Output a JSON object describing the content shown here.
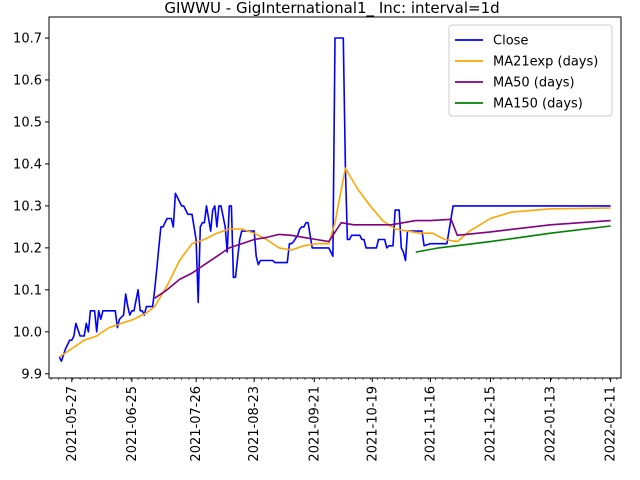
{
  "chart_data": {
    "type": "line",
    "title": "GIWWU - GigInternational1_ Inc: interval=1d",
    "xlabel": "",
    "ylabel": "",
    "xlim": [
      "2021-05-16",
      "2022-02-16"
    ],
    "ylim": [
      9.89,
      10.75
    ],
    "grid": false,
    "legend_position": "top-right",
    "x_ticks": [
      "2021-05-27",
      "2021-06-25",
      "2021-07-26",
      "2021-08-23",
      "2021-09-21",
      "2021-10-19",
      "2021-11-16",
      "2021-12-15",
      "2022-01-13",
      "2022-02-11"
    ],
    "y_ticks": [
      "9.9",
      "10.0",
      "10.1",
      "10.2",
      "10.3",
      "10.4",
      "10.5",
      "10.6",
      "10.7"
    ],
    "series": [
      {
        "name": "Close",
        "color": "#0000ff",
        "points": [
          [
            "2021-05-21",
            9.94
          ],
          [
            "2021-05-22",
            9.93
          ],
          [
            "2021-05-24",
            9.96
          ],
          [
            "2021-05-25",
            9.97
          ],
          [
            "2021-05-26",
            9.98
          ],
          [
            "2021-05-27",
            9.98
          ],
          [
            "2021-05-28",
            9.99
          ],
          [
            "2021-05-29",
            10.02
          ],
          [
            "2021-05-31",
            9.99
          ],
          [
            "2021-06-01",
            9.99
          ],
          [
            "2021-06-02",
            9.99
          ],
          [
            "2021-06-03",
            10.02
          ],
          [
            "2021-06-04",
            10.0
          ],
          [
            "2021-06-05",
            10.05
          ],
          [
            "2021-06-07",
            10.05
          ],
          [
            "2021-06-08",
            10.0
          ],
          [
            "2021-06-09",
            10.05
          ],
          [
            "2021-06-10",
            10.03
          ],
          [
            "2021-06-11",
            10.05
          ],
          [
            "2021-06-14",
            10.05
          ],
          [
            "2021-06-17",
            10.05
          ],
          [
            "2021-06-18",
            10.01
          ],
          [
            "2021-06-19",
            10.03
          ],
          [
            "2021-06-21",
            10.04
          ],
          [
            "2021-06-22",
            10.09
          ],
          [
            "2021-06-23",
            10.06
          ],
          [
            "2021-06-24",
            10.04
          ],
          [
            "2021-06-25",
            10.05
          ],
          [
            "2021-06-26",
            10.05
          ],
          [
            "2021-06-28",
            10.1
          ],
          [
            "2021-06-29",
            10.05
          ],
          [
            "2021-06-30",
            10.05
          ],
          [
            "2021-07-01",
            10.04
          ],
          [
            "2021-07-02",
            10.06
          ],
          [
            "2021-07-05",
            10.06
          ],
          [
            "2021-07-06",
            10.1
          ],
          [
            "2021-07-07",
            10.15
          ],
          [
            "2021-07-08",
            10.2
          ],
          [
            "2021-07-09",
            10.25
          ],
          [
            "2021-07-10",
            10.25
          ],
          [
            "2021-07-12",
            10.27
          ],
          [
            "2021-07-13",
            10.27
          ],
          [
            "2021-07-14",
            10.27
          ],
          [
            "2021-07-15",
            10.25
          ],
          [
            "2021-07-16",
            10.33
          ],
          [
            "2021-07-17",
            10.32
          ],
          [
            "2021-07-19",
            10.3
          ],
          [
            "2021-07-20",
            10.3
          ],
          [
            "2021-07-21",
            10.29
          ],
          [
            "2021-07-22",
            10.28
          ],
          [
            "2021-07-23",
            10.28
          ],
          [
            "2021-07-24",
            10.28
          ],
          [
            "2021-07-26",
            10.22
          ],
          [
            "2021-07-27",
            10.07
          ],
          [
            "2021-07-28",
            10.25
          ],
          [
            "2021-07-29",
            10.26
          ],
          [
            "2021-07-30",
            10.26
          ],
          [
            "2021-07-31",
            10.3
          ],
          [
            "2021-08-02",
            10.24
          ],
          [
            "2021-08-03",
            10.29
          ],
          [
            "2021-08-04",
            10.3
          ],
          [
            "2021-08-05",
            10.25
          ],
          [
            "2021-08-06",
            10.3
          ],
          [
            "2021-08-07",
            10.3
          ],
          [
            "2021-08-09",
            10.25
          ],
          [
            "2021-08-10",
            10.19
          ],
          [
            "2021-08-11",
            10.3
          ],
          [
            "2021-08-12",
            10.3
          ],
          [
            "2021-08-13",
            10.13
          ],
          [
            "2021-08-14",
            10.13
          ],
          [
            "2021-08-16",
            10.22
          ],
          [
            "2021-08-17",
            10.24
          ],
          [
            "2021-08-18",
            10.24
          ],
          [
            "2021-08-19",
            10.24
          ],
          [
            "2021-08-20",
            10.24
          ],
          [
            "2021-08-23",
            10.24
          ],
          [
            "2021-08-24",
            10.18
          ],
          [
            "2021-08-25",
            10.16
          ],
          [
            "2021-08-26",
            10.17
          ],
          [
            "2021-08-27",
            10.17
          ],
          [
            "2021-08-30",
            10.17
          ],
          [
            "2021-09-01",
            10.17
          ],
          [
            "2021-09-02",
            10.165
          ],
          [
            "2021-09-04",
            10.165
          ],
          [
            "2021-09-06",
            10.165
          ],
          [
            "2021-09-08",
            10.165
          ],
          [
            "2021-09-09",
            10.21
          ],
          [
            "2021-09-10",
            10.21
          ],
          [
            "2021-09-11",
            10.215
          ],
          [
            "2021-09-13",
            10.23
          ],
          [
            "2021-09-14",
            10.245
          ],
          [
            "2021-09-15",
            10.25
          ],
          [
            "2021-09-16",
            10.25
          ],
          [
            "2021-09-17",
            10.26
          ],
          [
            "2021-09-18",
            10.26
          ],
          [
            "2021-09-20",
            10.2
          ],
          [
            "2021-09-27",
            10.2
          ],
          [
            "2021-09-28",
            10.2
          ],
          [
            "2021-09-29",
            10.19
          ],
          [
            "2021-09-30",
            10.18
          ],
          [
            "2021-10-01",
            10.7
          ],
          [
            "2021-10-02",
            10.7
          ],
          [
            "2021-10-04",
            10.7
          ],
          [
            "2021-10-05",
            10.7
          ],
          [
            "2021-10-06",
            10.39
          ],
          [
            "2021-10-07",
            10.22
          ],
          [
            "2021-10-08",
            10.22
          ],
          [
            "2021-10-09",
            10.23
          ],
          [
            "2021-10-11",
            10.23
          ],
          [
            "2021-10-12",
            10.23
          ],
          [
            "2021-10-13",
            10.23
          ],
          [
            "2021-10-14",
            10.22
          ],
          [
            "2021-10-15",
            10.22
          ],
          [
            "2021-10-16",
            10.2
          ],
          [
            "2021-10-18",
            10.2
          ],
          [
            "2021-10-19",
            10.2
          ],
          [
            "2021-10-20",
            10.2
          ],
          [
            "2021-10-21",
            10.2
          ],
          [
            "2021-10-22",
            10.22
          ],
          [
            "2021-10-23",
            10.22
          ],
          [
            "2021-10-25",
            10.22
          ],
          [
            "2021-10-26",
            10.2
          ],
          [
            "2021-10-27",
            10.205
          ],
          [
            "2021-10-28",
            10.205
          ],
          [
            "2021-10-29",
            10.205
          ],
          [
            "2021-10-30",
            10.29
          ],
          [
            "2021-11-01",
            10.29
          ],
          [
            "2021-11-02",
            10.2
          ],
          [
            "2021-11-03",
            10.19
          ],
          [
            "2021-11-04",
            10.17
          ],
          [
            "2021-11-05",
            10.24
          ],
          [
            "2021-11-10",
            10.24
          ],
          [
            "2021-11-12",
            10.24
          ],
          [
            "2021-11-13",
            10.205
          ],
          [
            "2021-11-16",
            10.21
          ],
          [
            "2021-11-24",
            10.21
          ],
          [
            "2021-11-27",
            10.3
          ],
          [
            "2021-12-20",
            10.3
          ],
          [
            "2022-01-13",
            10.3
          ],
          [
            "2022-02-11",
            10.3
          ]
        ]
      },
      {
        "name": "MA21exp (days)",
        "color": "#ffa500",
        "points": [
          [
            "2021-05-21",
            9.94
          ],
          [
            "2021-05-27",
            9.96
          ],
          [
            "2021-06-02",
            9.98
          ],
          [
            "2021-06-08",
            9.99
          ],
          [
            "2021-06-14",
            10.01
          ],
          [
            "2021-06-20",
            10.02
          ],
          [
            "2021-06-26",
            10.03
          ],
          [
            "2021-07-02",
            10.045
          ],
          [
            "2021-07-06",
            10.06
          ],
          [
            "2021-07-12",
            10.11
          ],
          [
            "2021-07-18",
            10.17
          ],
          [
            "2021-07-24",
            10.21
          ],
          [
            "2021-07-30",
            10.22
          ],
          [
            "2021-08-05",
            10.235
          ],
          [
            "2021-08-11",
            10.245
          ],
          [
            "2021-08-17",
            10.245
          ],
          [
            "2021-08-23",
            10.235
          ],
          [
            "2021-08-29",
            10.22
          ],
          [
            "2021-09-04",
            10.2
          ],
          [
            "2021-09-10",
            10.195
          ],
          [
            "2021-09-16",
            10.205
          ],
          [
            "2021-09-22",
            10.21
          ],
          [
            "2021-09-28",
            10.21
          ],
          [
            "2021-10-01",
            10.26
          ],
          [
            "2021-10-06",
            10.39
          ],
          [
            "2021-10-12",
            10.34
          ],
          [
            "2021-10-18",
            10.3
          ],
          [
            "2021-10-24",
            10.265
          ],
          [
            "2021-10-30",
            10.245
          ],
          [
            "2021-11-05",
            10.24
          ],
          [
            "2021-11-11",
            10.235
          ],
          [
            "2021-11-17",
            10.235
          ],
          [
            "2021-11-23",
            10.22
          ],
          [
            "2021-11-29",
            10.215
          ],
          [
            "2021-12-05",
            10.24
          ],
          [
            "2021-12-15",
            10.27
          ],
          [
            "2021-12-25",
            10.285
          ],
          [
            "2022-01-13",
            10.293
          ],
          [
            "2022-02-11",
            10.295
          ]
        ]
      },
      {
        "name": "MA50 (days)",
        "color": "#800080",
        "points": [
          [
            "2021-07-06",
            10.08
          ],
          [
            "2021-07-12",
            10.1
          ],
          [
            "2021-07-18",
            10.125
          ],
          [
            "2021-07-24",
            10.14
          ],
          [
            "2021-07-30",
            10.16
          ],
          [
            "2021-08-05",
            10.18
          ],
          [
            "2021-08-11",
            10.2
          ],
          [
            "2021-08-17",
            10.21
          ],
          [
            "2021-08-23",
            10.22
          ],
          [
            "2021-08-29",
            10.225
          ],
          [
            "2021-09-04",
            10.232
          ],
          [
            "2021-09-10",
            10.23
          ],
          [
            "2021-09-16",
            10.225
          ],
          [
            "2021-09-22",
            10.22
          ],
          [
            "2021-09-28",
            10.215
          ],
          [
            "2021-10-04",
            10.26
          ],
          [
            "2021-10-10",
            10.255
          ],
          [
            "2021-10-16",
            10.255
          ],
          [
            "2021-10-22",
            10.255
          ],
          [
            "2021-10-28",
            10.255
          ],
          [
            "2021-11-03",
            10.26
          ],
          [
            "2021-11-09",
            10.265
          ],
          [
            "2021-11-16",
            10.265
          ],
          [
            "2021-11-26",
            10.268
          ],
          [
            "2021-11-29",
            10.23
          ],
          [
            "2021-12-15",
            10.238
          ],
          [
            "2022-01-13",
            10.255
          ],
          [
            "2022-02-11",
            10.265
          ]
        ]
      },
      {
        "name": "MA150 (days)",
        "color": "#008000",
        "points": [
          [
            "2021-11-09",
            10.19
          ],
          [
            "2021-11-20",
            10.2
          ],
          [
            "2021-12-15",
            10.215
          ],
          [
            "2022-01-13",
            10.235
          ],
          [
            "2022-02-11",
            10.252
          ]
        ]
      }
    ]
  }
}
